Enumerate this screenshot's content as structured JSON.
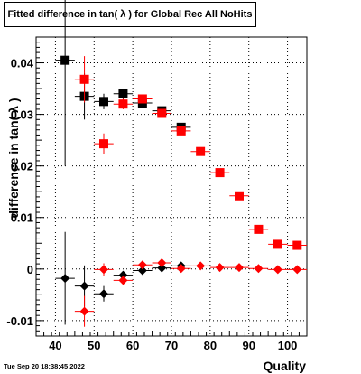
{
  "header": {
    "title": "Fitted difference in tan( λ ) for Global Rec All NoHits"
  },
  "footer": {
    "timestamp": "Tue Sep 20 18:38:45 2022"
  },
  "chart_data": {
    "type": "scatter",
    "title": "Fitted difference in tan( λ ) for Global Rec All NoHits",
    "xlabel": "Quality",
    "ylabel": "difference in tan( λ )",
    "xlim": [
      35,
      105
    ],
    "ylim": [
      -0.013,
      0.045
    ],
    "grid": true,
    "x_ticks": [
      40,
      50,
      60,
      70,
      80,
      90,
      100
    ],
    "x_tick_labels": [
      "40",
      "50",
      "60",
      "70",
      "80",
      "90",
      "100"
    ],
    "y_ticks": [
      -0.01,
      0,
      0.01,
      0.02,
      0.03,
      0.04
    ],
    "y_tick_labels": [
      "-0.01",
      "0",
      "0.01",
      "0.02",
      "0.03",
      "0.04"
    ],
    "series": [
      {
        "marker": "square",
        "color": "#000000",
        "points": [
          {
            "x": 42.5,
            "y": 0.0405,
            "yerr": 0.0205
          },
          {
            "x": 47.5,
            "y": 0.0335,
            "yerr": 0.0045
          },
          {
            "x": 52.5,
            "y": 0.0325,
            "yerr": 0.0015
          },
          {
            "x": 57.5,
            "y": 0.034,
            "yerr": 0.001
          },
          {
            "x": 62.5,
            "y": 0.0322,
            "yerr": 0.0006
          },
          {
            "x": 67.5,
            "y": 0.0307,
            "yerr": 0.0004
          },
          {
            "x": 72.5,
            "y": 0.0275,
            "yerr": 0.0004
          }
        ]
      },
      {
        "marker": "square",
        "color": "#ff0000",
        "points": [
          {
            "x": 47.5,
            "y": 0.0368,
            "yerr": 0.0045
          },
          {
            "x": 52.5,
            "y": 0.0243,
            "yerr": 0.002
          },
          {
            "x": 57.5,
            "y": 0.032,
            "yerr": 0.001
          },
          {
            "x": 62.5,
            "y": 0.033,
            "yerr": 0.0006
          },
          {
            "x": 67.5,
            "y": 0.0302,
            "yerr": 0.0004
          },
          {
            "x": 72.5,
            "y": 0.0268,
            "yerr": 0.0004
          },
          {
            "x": 77.5,
            "y": 0.0228,
            "yerr": 0.0003
          },
          {
            "x": 82.5,
            "y": 0.0187,
            "yerr": 0.0003
          },
          {
            "x": 87.5,
            "y": 0.0142,
            "yerr": 0.0003
          },
          {
            "x": 92.5,
            "y": 0.0077,
            "yerr": 0.0003
          },
          {
            "x": 97.5,
            "y": 0.0048,
            "yerr": 0.0003
          },
          {
            "x": 102.5,
            "y": 0.0046,
            "yerr": 0.0003
          }
        ]
      },
      {
        "marker": "diamond",
        "color": "#000000",
        "points": [
          {
            "x": 42.5,
            "y": -0.0018,
            "yerr": 0.009
          },
          {
            "x": 47.5,
            "y": -0.0033,
            "yerr": 0.004
          },
          {
            "x": 52.5,
            "y": -0.0048,
            "yerr": 0.0015
          },
          {
            "x": 57.5,
            "y": -0.0012,
            "yerr": 0.0008
          },
          {
            "x": 62.5,
            "y": -0.0003,
            "yerr": 0.0005
          },
          {
            "x": 67.5,
            "y": 0.0002,
            "yerr": 0.0004
          },
          {
            "x": 72.5,
            "y": 0.0006,
            "yerr": 0.0003
          }
        ]
      },
      {
        "marker": "diamond",
        "color": "#ff0000",
        "points": [
          {
            "x": 47.5,
            "y": -0.0082,
            "yerr": 0.003
          },
          {
            "x": 52.5,
            "y": -0.0001,
            "yerr": 0.0012
          },
          {
            "x": 57.5,
            "y": -0.0022,
            "yerr": 0.0007
          },
          {
            "x": 62.5,
            "y": 0.0008,
            "yerr": 0.0005
          },
          {
            "x": 67.5,
            "y": 0.0012,
            "yerr": 0.0004
          },
          {
            "x": 72.5,
            "y": 0.0001,
            "yerr": 0.0003
          },
          {
            "x": 77.5,
            "y": 0.0006,
            "yerr": 0.0003
          },
          {
            "x": 82.5,
            "y": 0.0003,
            "yerr": 0.0003
          },
          {
            "x": 87.5,
            "y": 0.0003,
            "yerr": 0.0003
          },
          {
            "x": 92.5,
            "y": 0.0001,
            "yerr": 0.0003
          },
          {
            "x": 97.5,
            "y": -0.0001,
            "yerr": 0.0003
          },
          {
            "x": 102.5,
            "y": -0.0001,
            "yerr": 0.0003
          }
        ]
      }
    ]
  }
}
